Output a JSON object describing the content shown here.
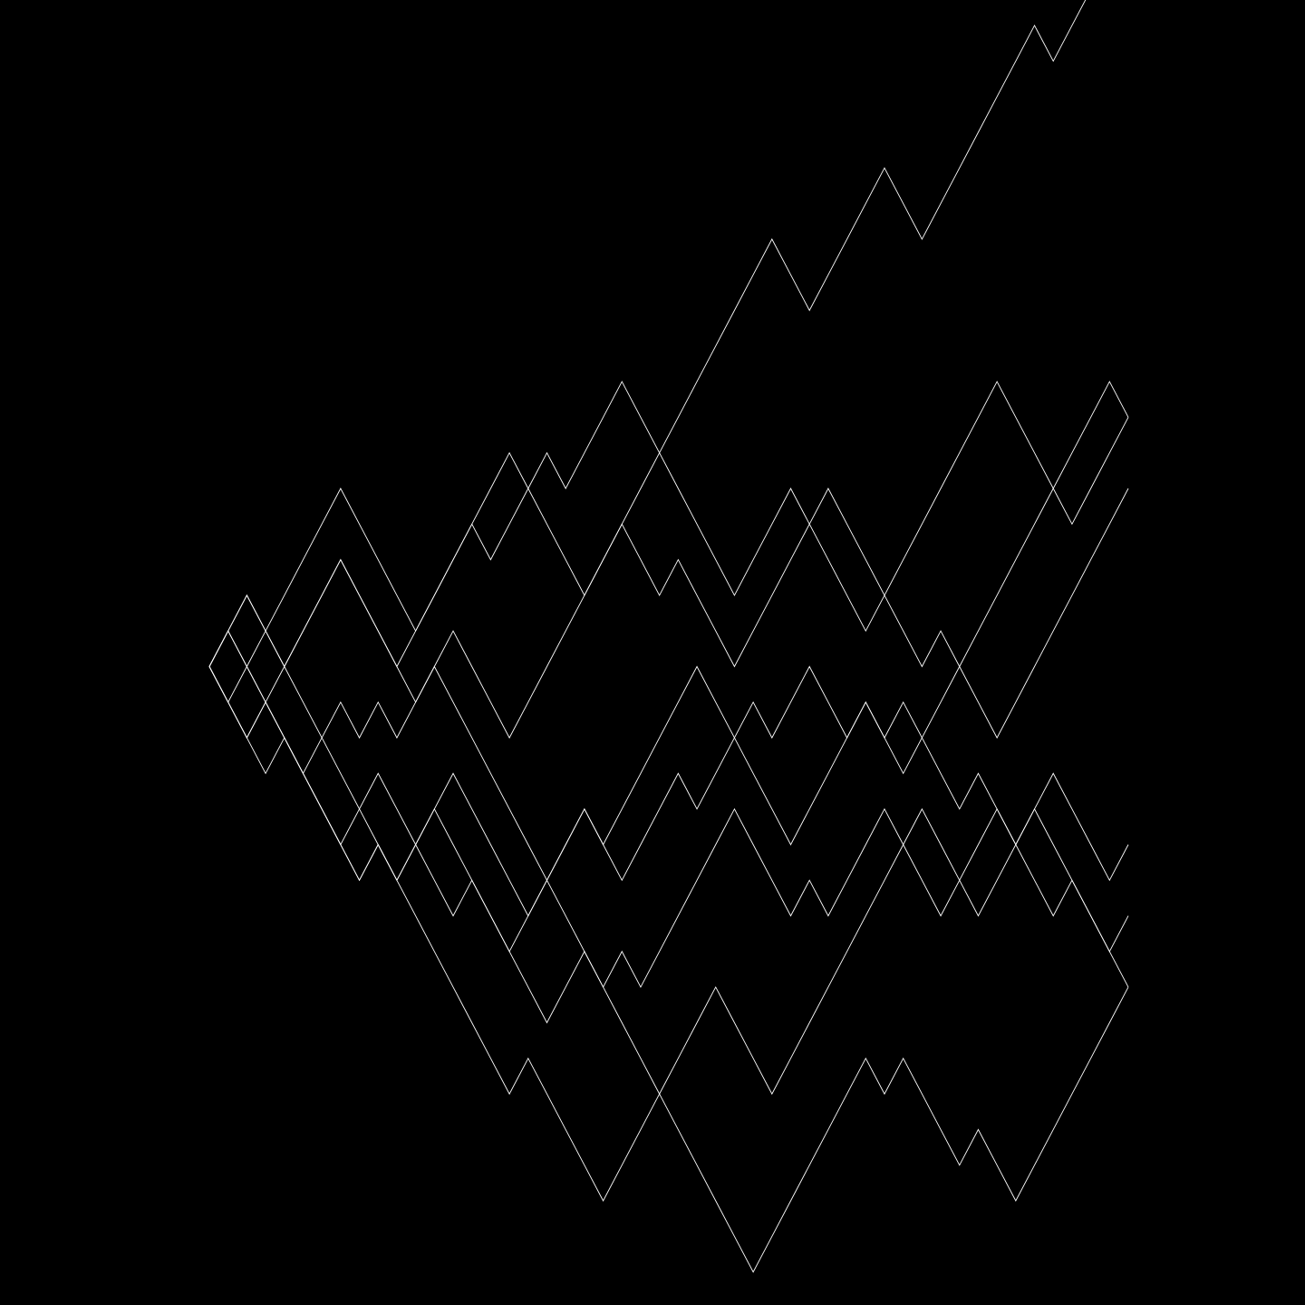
{
  "background_color": "#000000",
  "line_color": "#ffffff",
  "walks": {
    "steps": 49,
    "start_level": 0,
    "paths": [
      [
        0,
        1,
        2,
        1,
        0,
        1,
        2,
        3,
        2,
        1,
        0,
        1,
        2,
        3,
        4,
        3,
        4,
        5,
        6,
        5,
        6,
        7,
        8,
        7,
        6,
        7,
        8,
        9,
        10,
        11,
        12,
        11,
        10,
        11,
        12,
        13,
        14,
        13,
        12,
        13,
        14,
        15,
        16,
        17,
        18,
        17,
        18,
        19,
        20,
        21
      ],
      [
        0,
        1,
        2,
        1,
        2,
        3,
        4,
        5,
        4,
        3,
        2,
        1,
        2,
        3,
        4,
        5,
        6,
        5,
        4,
        3,
        2,
        3,
        4,
        5,
        6,
        5,
        4,
        3,
        2,
        3,
        4,
        5,
        4,
        3,
        2,
        1,
        2,
        3,
        4,
        5,
        6,
        7,
        8,
        7,
        6,
        5,
        6,
        7,
        8,
        7
      ],
      [
        0,
        -1,
        -2,
        -3,
        -2,
        -3,
        -4,
        -5,
        -4,
        -3,
        -4,
        -5,
        -4,
        -3,
        -4,
        -5,
        -6,
        -7,
        -6,
        -5,
        -4,
        -5,
        -6,
        -5,
        -4,
        -3,
        -4,
        -3,
        -2,
        -1,
        -2,
        -1,
        0,
        -1,
        -2,
        -1,
        -2,
        -1,
        -2,
        -3,
        -4,
        -3,
        -4,
        -5,
        -4,
        -3,
        -4,
        -5,
        -6,
        -5
      ],
      [
        0,
        1,
        0,
        -1,
        0,
        1,
        2,
        3,
        2,
        1,
        0,
        -1,
        0,
        1,
        0,
        -1,
        -2,
        -1,
        0,
        1,
        2,
        3,
        4,
        3,
        2,
        3,
        2,
        1,
        0,
        1,
        2,
        3,
        4,
        5,
        4,
        3,
        2,
        1,
        0,
        1,
        0,
        -1,
        -2,
        -1,
        0,
        1,
        2,
        3,
        4,
        5
      ],
      [
        0,
        -1,
        0,
        1,
        0,
        -1,
        -2,
        -3,
        -4,
        -5,
        -6,
        -5,
        -4,
        -5,
        -6,
        -7,
        -8,
        -9,
        -10,
        -9,
        -8,
        -9,
        -10,
        -11,
        -12,
        -11,
        -10,
        -9,
        -10,
        -11,
        -12,
        -11,
        -10,
        -9,
        -8,
        -7,
        -6,
        -5,
        -4,
        -5,
        -6,
        -7,
        -6,
        -5,
        -6,
        -7,
        -6,
        -7,
        -8,
        -9
      ],
      [
        0,
        -1,
        -2,
        -1,
        -2,
        -3,
        -4,
        -5,
        -6,
        -5,
        -6,
        -5,
        -6,
        -7,
        -6,
        -7,
        -8,
        -7,
        -6,
        -7,
        -8,
        -9,
        -8,
        -9,
        -8,
        -7,
        -6,
        -5,
        -4,
        -5,
        -6,
        -7,
        -6,
        -7,
        -6,
        -5,
        -4,
        -5,
        -6,
        -7,
        -6,
        -5,
        -4,
        -5,
        -4,
        -5,
        -6,
        -7,
        -8,
        -7
      ],
      [
        0,
        1,
        0,
        -1,
        -2,
        -3,
        -2,
        -1,
        -2,
        -1,
        -2,
        -1,
        0,
        -1,
        -2,
        -3,
        -4,
        -5,
        -6,
        -5,
        -4,
        -5,
        -4,
        -3,
        -2,
        -1,
        0,
        -1,
        -2,
        -3,
        -4,
        -5,
        -4,
        -3,
        -2,
        -1,
        -2,
        -3,
        -2,
        -1,
        0,
        1,
        2,
        3,
        4,
        5,
        4,
        5,
        6,
        7
      ],
      [
        0,
        -1,
        -2,
        -1,
        -2,
        -3,
        -4,
        -5,
        -6,
        -5,
        -6,
        -7,
        -8,
        -9,
        -10,
        -11,
        -12,
        -11,
        -12,
        -13,
        -14,
        -15,
        -14,
        -13,
        -12,
        -13,
        -14,
        -15,
        -16,
        -17,
        -16,
        -15,
        -14,
        -13,
        -12,
        -11,
        -12,
        -11,
        -12,
        -13,
        -14,
        -13,
        -14,
        -15,
        -14,
        -13,
        -12,
        -11,
        -10,
        -9
      ]
    ]
  }
}
